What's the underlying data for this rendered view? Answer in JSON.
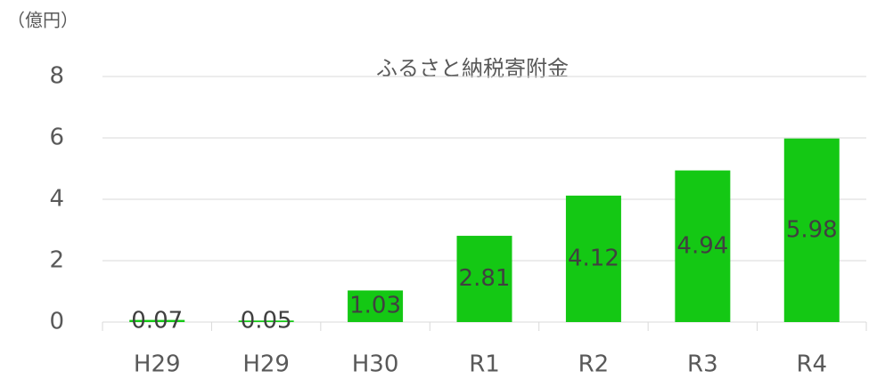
{
  "chart_data": {
    "type": "bar",
    "title": "ふるさと納税寄附金",
    "unit_label": "（億円）",
    "categories": [
      "H29",
      "H29",
      "H30",
      "R1",
      "R2",
      "R3",
      "R4"
    ],
    "values": [
      0.07,
      0.05,
      1.03,
      2.81,
      4.12,
      4.94,
      5.98
    ],
    "color": "#14c814",
    "ylim": [
      0,
      8
    ],
    "yticks": [
      0,
      2,
      4,
      6,
      8
    ],
    "grid": true
  }
}
